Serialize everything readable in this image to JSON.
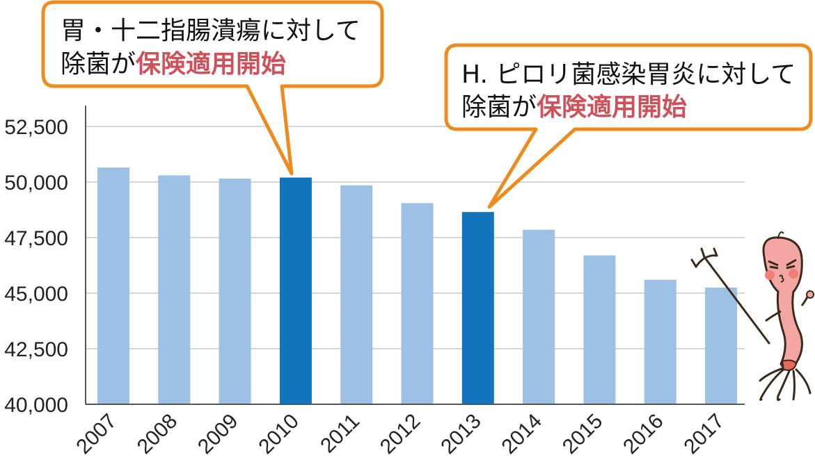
{
  "chart_data": {
    "type": "bar",
    "categories": [
      "2007",
      "2008",
      "2009",
      "2010",
      "2011",
      "2012",
      "2013",
      "2014",
      "2015",
      "2016",
      "2017"
    ],
    "values": [
      50650,
      50300,
      50150,
      50200,
      49850,
      49050,
      48650,
      47850,
      46700,
      45600,
      45250
    ],
    "ylim": [
      40000,
      53500
    ],
    "yticks": [
      "40,000",
      "42,500",
      "45,000",
      "47,500",
      "50,000",
      "52,500"
    ],
    "ytick_values": [
      40000,
      42500,
      45000,
      47500,
      50000,
      52500
    ],
    "highlight_categories": [
      "2010",
      "2013"
    ],
    "colors": {
      "bar": "#9dc0e5",
      "highlight": "#1174bd",
      "grid": "#c8c8c8",
      "callout_border": "#ef8a1d",
      "accent_text": "#d0505a"
    },
    "grid": true,
    "annotations": [
      {
        "target": "2010",
        "line1": "胃・十二指腸潰瘍に対して",
        "line2_prefix": "除菌が",
        "line2_highlight": "保険適用開始"
      },
      {
        "target": "2013",
        "line1": "H. ピロリ菌感染胃炎に対して",
        "line2_prefix": "除菌が",
        "line2_highlight": "保険適用開始"
      }
    ]
  },
  "mascot": {
    "icon": "bacteria-mascot-icon",
    "prop": "trident-icon"
  }
}
